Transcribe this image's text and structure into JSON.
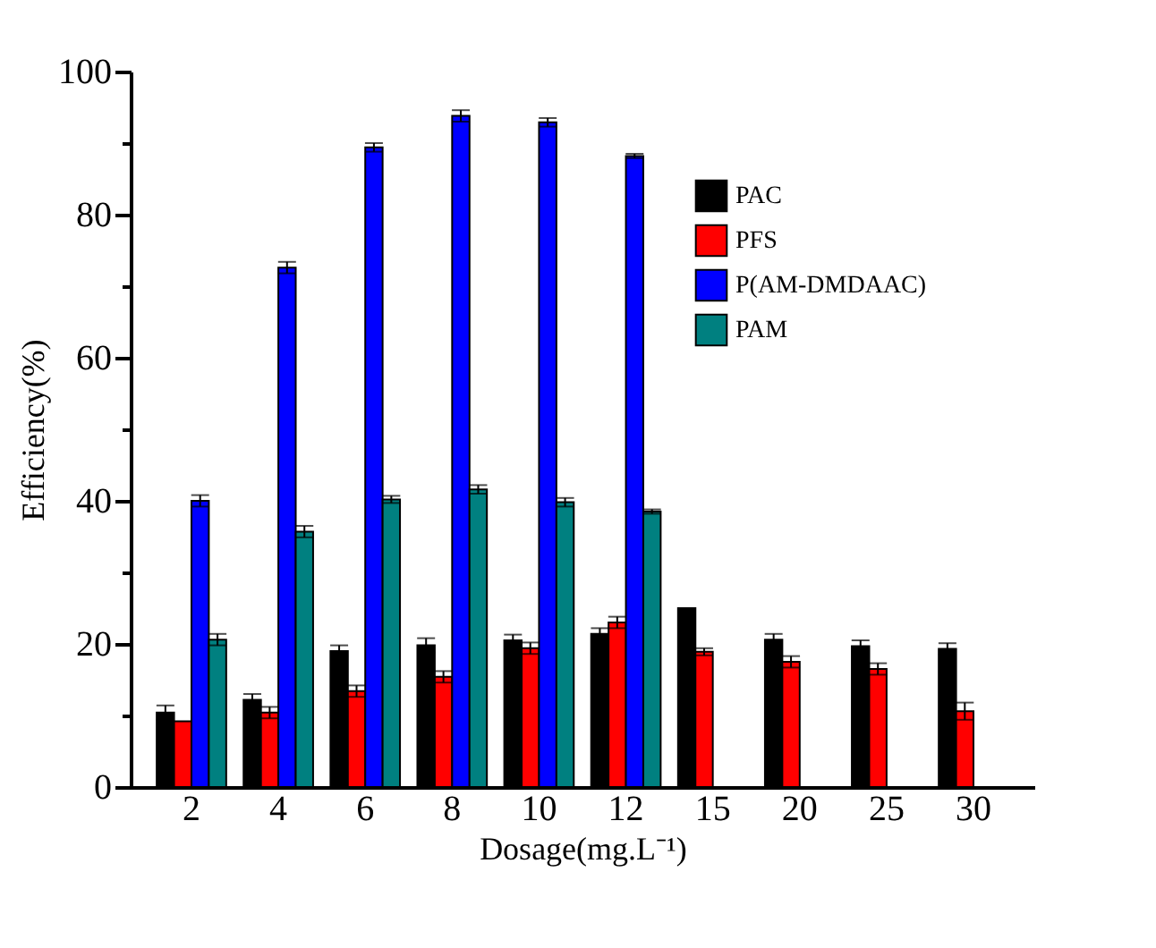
{
  "chart_data": {
    "type": "bar",
    "xlabel": "Dosage(mg.L⁻¹)",
    "ylabel": "Efficiency(%)",
    "categories": [
      "2",
      "4",
      "6",
      "8",
      "10",
      "12",
      "15",
      "20",
      "25",
      "30"
    ],
    "series": [
      {
        "name": "PAC",
        "color": "#000000",
        "values": [
          10.4,
          12.2,
          19,
          19.8,
          20.5,
          21.4,
          25,
          20.6,
          19.7,
          19.3
        ],
        "errors": [
          1,
          0.8,
          0.8,
          1,
          0.8,
          0.8,
          null,
          0.8,
          0.8,
          0.8
        ]
      },
      {
        "name": "PFS",
        "color": "#ff0000",
        "values": [
          9.2,
          10.4,
          13.4,
          15.4,
          19.4,
          23,
          18.9,
          17.5,
          16.5,
          10.6
        ],
        "errors": [
          null,
          0.8,
          0.8,
          0.8,
          0.8,
          0.8,
          0.5,
          0.8,
          0.8,
          1.2
        ]
      },
      {
        "name": "P(AM-DMDAAC)",
        "color": "#0000ff",
        "values": [
          40,
          72.6,
          89.4,
          93.8,
          92.9,
          88.2,
          null,
          null,
          null,
          null
        ],
        "errors": [
          0.8,
          0.8,
          0.6,
          0.8,
          0.6,
          0.3,
          null,
          null,
          null,
          null
        ]
      },
      {
        "name": "PAM",
        "color": "#008080",
        "values": [
          20.6,
          35.7,
          40.2,
          41.6,
          39.8,
          38.5,
          null,
          null,
          null,
          null
        ],
        "errors": [
          0.8,
          0.8,
          0.5,
          0.6,
          0.6,
          0.3,
          null,
          null,
          null,
          null
        ]
      }
    ],
    "ylim": [
      0,
      100
    ],
    "yticks": [
      0,
      {
        "value": 10,
        "label": null
      },
      20,
      {
        "value": 30,
        "label": null
      },
      40,
      {
        "value": 50,
        "label": null
      },
      60,
      {
        "value": 70,
        "label": null
      },
      80,
      {
        "value": 90,
        "label": null
      },
      100
    ],
    "legend": "top right",
    "grid": false
  }
}
